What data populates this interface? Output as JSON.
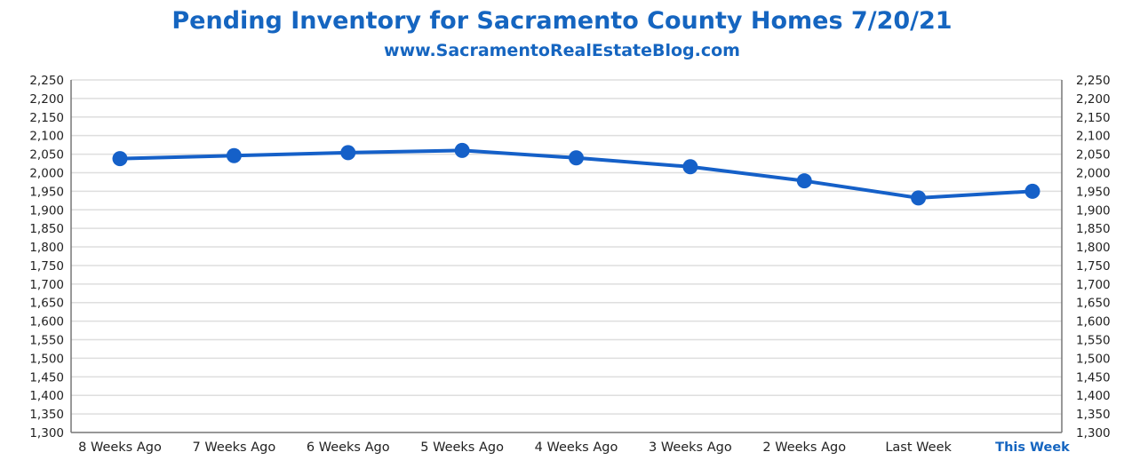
{
  "header": {
    "title": "Pending Inventory for Sacramento County Homes 7/20/21",
    "subtitle": "www.SacramentoRealEstateBlog.com"
  },
  "colors": {
    "accent": "#1565c0",
    "line": "#1560c8",
    "grid": "#dedede",
    "axis": "#777777",
    "text": "#222222"
  },
  "chart_data": {
    "type": "line",
    "title": "Pending Inventory for Sacramento County Homes 7/20/21",
    "subtitle": "www.SacramentoRealEstateBlog.com",
    "xlabel": "",
    "ylabel": "",
    "categories": [
      "8 Weeks Ago",
      "7 Weeks Ago",
      "6 Weeks Ago",
      "5 Weeks Ago",
      "4 Weeks Ago",
      "3 Weeks Ago",
      "2 Weeks Ago",
      "Last Week",
      "This Week"
    ],
    "highlight_category": "This Week",
    "series": [
      {
        "values": [
          2038,
          2046,
          2054,
          2060,
          2040,
          2016,
          1978,
          1932,
          1950
        ]
      }
    ],
    "ylim": [
      1300,
      2250
    ],
    "y_ticks": [
      1300,
      1350,
      1400,
      1450,
      1500,
      1550,
      1600,
      1650,
      1700,
      1750,
      1800,
      1850,
      1900,
      1950,
      2000,
      2050,
      2100,
      2150,
      2200,
      2250
    ],
    "y_tick_labels": [
      "1,300",
      "1,350",
      "1,400",
      "1,450",
      "1,500",
      "1,550",
      "1,600",
      "1,650",
      "1,700",
      "1,750",
      "1,800",
      "1,850",
      "1,900",
      "1,950",
      "2,000",
      "2,050",
      "2,100",
      "2,150",
      "2,200",
      "2,250"
    ],
    "dual_y_axis": true,
    "grid": true,
    "legend": "none"
  }
}
